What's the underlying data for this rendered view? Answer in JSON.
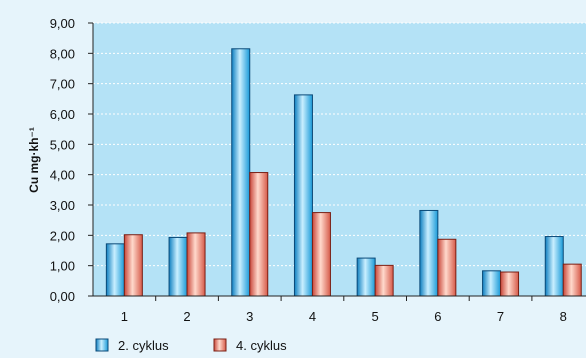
{
  "chart_data": {
    "type": "bar",
    "ylabel": "Cu mg·kh⁻¹",
    "categories": [
      "1",
      "2",
      "3",
      "4",
      "5",
      "6",
      "7",
      "8"
    ],
    "y_ticks": [
      "0,00",
      "1,00",
      "2,00",
      "3,00",
      "4,00",
      "5,00",
      "6,00",
      "7,00",
      "8,00",
      "9,00"
    ],
    "ylim": [
      0,
      9
    ],
    "grid": true,
    "legend_position": "bottom",
    "series": [
      {
        "name": "2. cyklus",
        "color": "#29aee6",
        "values": [
          1.72,
          1.93,
          8.15,
          6.63,
          1.25,
          2.82,
          0.83,
          1.96
        ]
      },
      {
        "name": "4. cyklus",
        "color": "#e9826e",
        "values": [
          2.02,
          2.08,
          4.07,
          2.75,
          1.01,
          1.87,
          0.79,
          1.05
        ]
      }
    ]
  }
}
